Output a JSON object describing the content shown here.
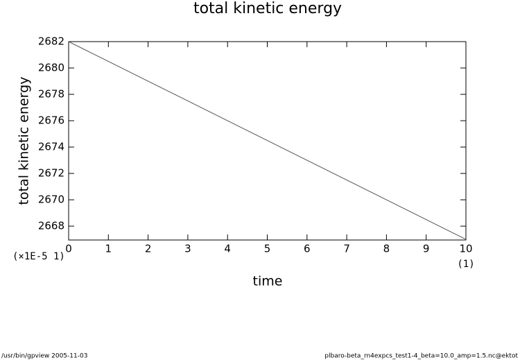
{
  "chart_data": {
    "type": "line",
    "title": "total kinetic energy",
    "x_label": "time",
    "y_label": "total kinetic energy",
    "x": [
      0,
      10
    ],
    "values": [
      2682,
      2667
    ],
    "color": "#555555",
    "xlim": [
      0,
      10
    ],
    "xticks": [
      0,
      1,
      2,
      3,
      4,
      5,
      6,
      7,
      8,
      9,
      10
    ],
    "ylim": [
      2666.95,
      2682
    ],
    "yticks": [
      2668,
      2670,
      2672,
      2674,
      2676,
      2678,
      2680,
      2682
    ],
    "annotations": [
      "(×1E-5 1)",
      "(1)"
    ],
    "footer_left": "/usr/bin/gpview   2005-11-03",
    "footer_right": "plbaro-beta_rn4expcs_test1-4_beta=10.0_amp=1.5.nc@ektot"
  }
}
